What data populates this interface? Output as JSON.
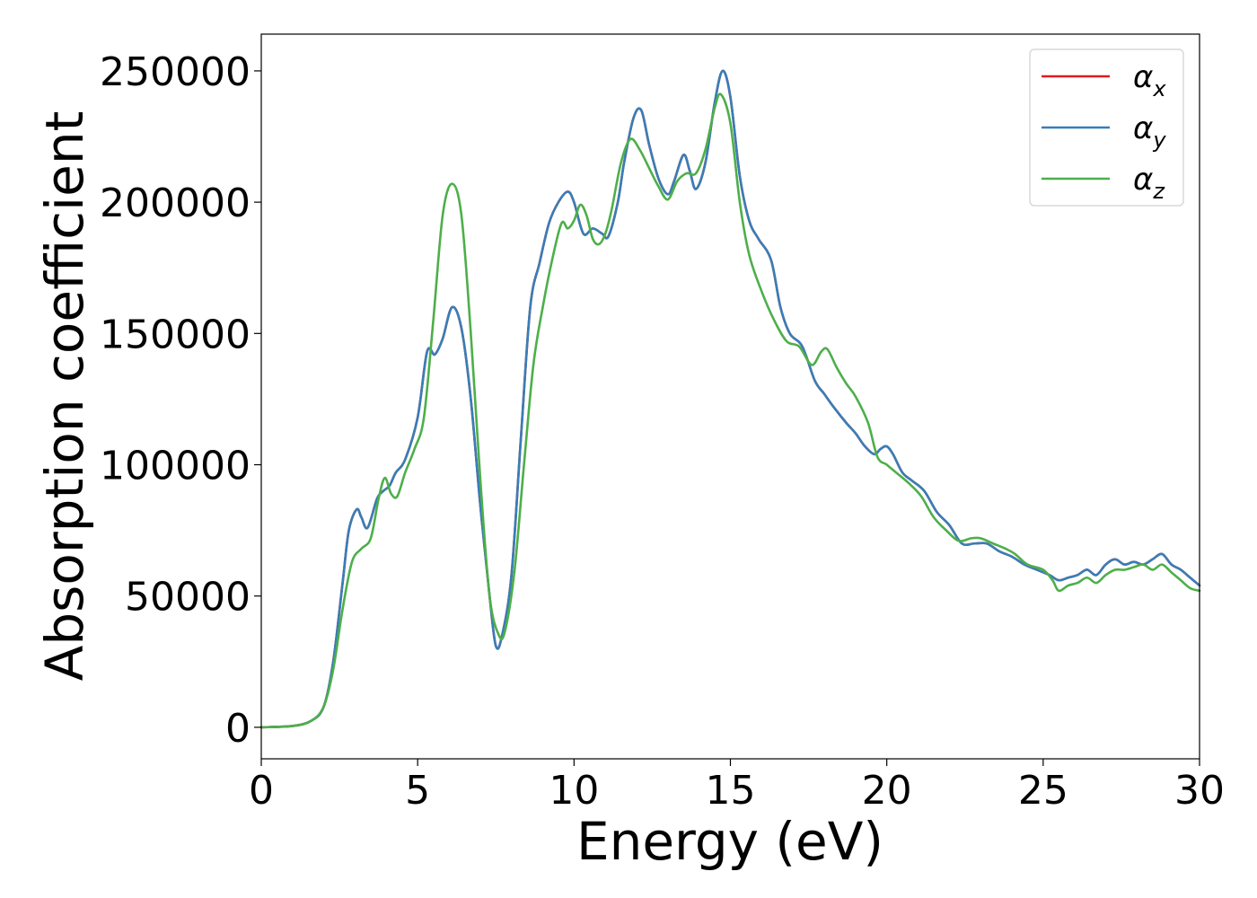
{
  "chart_data": {
    "type": "line",
    "title": "",
    "xlabel": "Energy (eV)",
    "ylabel": "Absorption coefficient",
    "xlim": [
      0,
      30
    ],
    "ylim": [
      -12000,
      264000
    ],
    "xticks": [
      0,
      5,
      10,
      15,
      20,
      25,
      30
    ],
    "yticks": [
      0,
      50000,
      100000,
      150000,
      200000,
      250000
    ],
    "xtick_labels": [
      "0",
      "5",
      "10",
      "15",
      "20",
      "25",
      "30"
    ],
    "ytick_labels": [
      "0",
      "50000",
      "100000",
      "150000",
      "200000",
      "250000"
    ],
    "grid": false,
    "legend": "top-right",
    "series": [
      {
        "name": "α_x",
        "label_base": "α",
        "label_sub": "x",
        "color": "#e41a1c",
        "x": [
          0,
          1,
          1.6,
          2.0,
          2.3,
          2.6,
          2.8,
          3.05,
          3.2,
          3.4,
          3.7,
          3.9,
          4.1,
          4.3,
          4.6,
          5.0,
          5.3,
          5.55,
          5.8,
          6.1,
          6.4,
          6.7,
          7.0,
          7.3,
          7.5,
          7.7,
          8.0,
          8.3,
          8.6,
          8.9,
          9.2,
          9.5,
          9.8,
          10.0,
          10.3,
          10.6,
          10.9,
          11.1,
          11.4,
          11.6,
          11.9,
          12.15,
          12.4,
          12.7,
          13.0,
          13.2,
          13.5,
          13.7,
          13.9,
          14.2,
          14.5,
          14.75,
          15.0,
          15.3,
          15.6,
          15.9,
          16.3,
          16.6,
          16.9,
          17.3,
          17.7,
          18.0,
          18.3,
          18.7,
          19.0,
          19.3,
          19.6,
          19.8,
          20.0,
          20.2,
          20.5,
          20.8,
          21.2,
          21.6,
          22.0,
          22.4,
          22.8,
          23.2,
          23.6,
          24.0,
          24.4,
          24.8,
          25.2,
          25.5,
          25.8,
          26.1,
          26.4,
          26.7,
          27.0,
          27.3,
          27.6,
          27.9,
          28.2,
          28.5,
          28.8,
          29.1,
          29.4,
          29.7,
          30.0
        ],
        "y": [
          0,
          500,
          2500,
          8000,
          25000,
          55000,
          75000,
          83000,
          80000,
          76000,
          87000,
          90000,
          92000,
          97000,
          102000,
          118000,
          143000,
          142000,
          148000,
          160000,
          152000,
          125000,
          85000,
          50000,
          31000,
          35000,
          58000,
          110000,
          160000,
          177000,
          192000,
          200000,
          204000,
          200000,
          188000,
          190000,
          188000,
          187000,
          200000,
          215000,
          232000,
          235000,
          222000,
          209000,
          203000,
          208000,
          218000,
          212000,
          205000,
          215000,
          238000,
          250000,
          240000,
          210000,
          193000,
          186000,
          178000,
          160000,
          150000,
          145000,
          132000,
          127000,
          122000,
          116000,
          112000,
          107000,
          104000,
          106000,
          107000,
          104000,
          97000,
          94000,
          90000,
          82000,
          77000,
          70000,
          70000,
          70000,
          67000,
          65000,
          62000,
          60000,
          58000,
          56000,
          57000,
          58000,
          60000,
          58000,
          62000,
          64000,
          62000,
          63000,
          62000,
          64000,
          66000,
          62000,
          60000,
          57000,
          54000
        ]
      },
      {
        "name": "α_y",
        "label_base": "α",
        "label_sub": "y",
        "color": "#377eb8",
        "x": [
          0,
          1,
          1.6,
          2.0,
          2.3,
          2.6,
          2.8,
          3.05,
          3.2,
          3.4,
          3.7,
          3.9,
          4.1,
          4.3,
          4.6,
          5.0,
          5.3,
          5.55,
          5.8,
          6.1,
          6.4,
          6.7,
          7.0,
          7.3,
          7.5,
          7.7,
          8.0,
          8.3,
          8.6,
          8.9,
          9.2,
          9.5,
          9.8,
          10.0,
          10.3,
          10.6,
          10.9,
          11.1,
          11.4,
          11.6,
          11.9,
          12.15,
          12.4,
          12.7,
          13.0,
          13.2,
          13.5,
          13.7,
          13.9,
          14.2,
          14.5,
          14.75,
          15.0,
          15.3,
          15.6,
          15.9,
          16.3,
          16.6,
          16.9,
          17.3,
          17.7,
          18.0,
          18.3,
          18.7,
          19.0,
          19.3,
          19.6,
          19.8,
          20.0,
          20.2,
          20.5,
          20.8,
          21.2,
          21.6,
          22.0,
          22.4,
          22.8,
          23.2,
          23.6,
          24.0,
          24.4,
          24.8,
          25.2,
          25.5,
          25.8,
          26.1,
          26.4,
          26.7,
          27.0,
          27.3,
          27.6,
          27.9,
          28.2,
          28.5,
          28.8,
          29.1,
          29.4,
          29.7,
          30.0
        ],
        "y": [
          0,
          500,
          2500,
          8000,
          25000,
          55000,
          75000,
          83000,
          80000,
          76000,
          87000,
          90000,
          92000,
          97000,
          102000,
          118000,
          143000,
          142000,
          148000,
          160000,
          152000,
          125000,
          85000,
          50000,
          31000,
          35000,
          58000,
          110000,
          160000,
          177000,
          192000,
          200000,
          204000,
          200000,
          188000,
          190000,
          188000,
          187000,
          200000,
          215000,
          232000,
          235000,
          222000,
          209000,
          203000,
          208000,
          218000,
          212000,
          205000,
          215000,
          238000,
          250000,
          240000,
          210000,
          193000,
          186000,
          178000,
          160000,
          150000,
          145000,
          132000,
          127000,
          122000,
          116000,
          112000,
          107000,
          104000,
          106000,
          107000,
          104000,
          97000,
          94000,
          90000,
          82000,
          77000,
          70000,
          70000,
          70000,
          67000,
          65000,
          62000,
          60000,
          58000,
          56000,
          57000,
          58000,
          60000,
          58000,
          62000,
          64000,
          62000,
          63000,
          62000,
          64000,
          66000,
          62000,
          60000,
          57000,
          54000
        ]
      },
      {
        "name": "α_z",
        "label_base": "α",
        "label_sub": "z",
        "color": "#4daf4a",
        "x": [
          0,
          1,
          1.6,
          2.0,
          2.3,
          2.6,
          2.9,
          3.2,
          3.5,
          3.75,
          3.95,
          4.15,
          4.35,
          4.6,
          4.9,
          5.2,
          5.5,
          5.8,
          6.1,
          6.4,
          6.7,
          7.0,
          7.3,
          7.6,
          7.8,
          8.1,
          8.4,
          8.7,
          9.0,
          9.3,
          9.6,
          9.8,
          10.0,
          10.2,
          10.4,
          10.6,
          10.8,
          11.0,
          11.2,
          11.5,
          11.8,
          12.1,
          12.4,
          12.7,
          13.0,
          13.3,
          13.6,
          13.9,
          14.2,
          14.5,
          14.7,
          15.0,
          15.3,
          15.6,
          16.0,
          16.4,
          16.8,
          17.2,
          17.6,
          17.9,
          18.1,
          18.4,
          18.7,
          19.0,
          19.4,
          19.7,
          20.0,
          20.3,
          20.7,
          21.1,
          21.5,
          21.9,
          22.3,
          22.7,
          23.0,
          23.4,
          23.8,
          24.1,
          24.5,
          25.0,
          25.3,
          25.5,
          25.8,
          26.1,
          26.4,
          26.7,
          27.0,
          27.3,
          27.6,
          27.9,
          28.2,
          28.5,
          28.8,
          29.1,
          29.4,
          29.7,
          30.0
        ],
        "y": [
          0,
          500,
          2500,
          8000,
          22000,
          45000,
          63000,
          68000,
          72000,
          87000,
          95000,
          89000,
          88000,
          97000,
          106000,
          118000,
          155000,
          195000,
          207000,
          195000,
          150000,
          95000,
          50000,
          35000,
          37000,
          60000,
          100000,
          138000,
          160000,
          178000,
          192000,
          190000,
          193000,
          199000,
          195000,
          186000,
          184000,
          188000,
          197000,
          215000,
          224000,
          220000,
          213000,
          206000,
          201000,
          208000,
          211000,
          211000,
          220000,
          236000,
          241000,
          230000,
          200000,
          180000,
          166000,
          155000,
          147000,
          145000,
          138000,
          143000,
          144000,
          137000,
          131000,
          126000,
          116000,
          103000,
          100000,
          97000,
          93000,
          88000,
          80000,
          75000,
          71000,
          72000,
          72000,
          70000,
          68000,
          66000,
          62000,
          60000,
          56000,
          52000,
          54000,
          55000,
          57000,
          55000,
          58000,
          60000,
          60000,
          61000,
          62000,
          60000,
          62000,
          59000,
          56000,
          53000,
          52000
        ]
      }
    ]
  }
}
